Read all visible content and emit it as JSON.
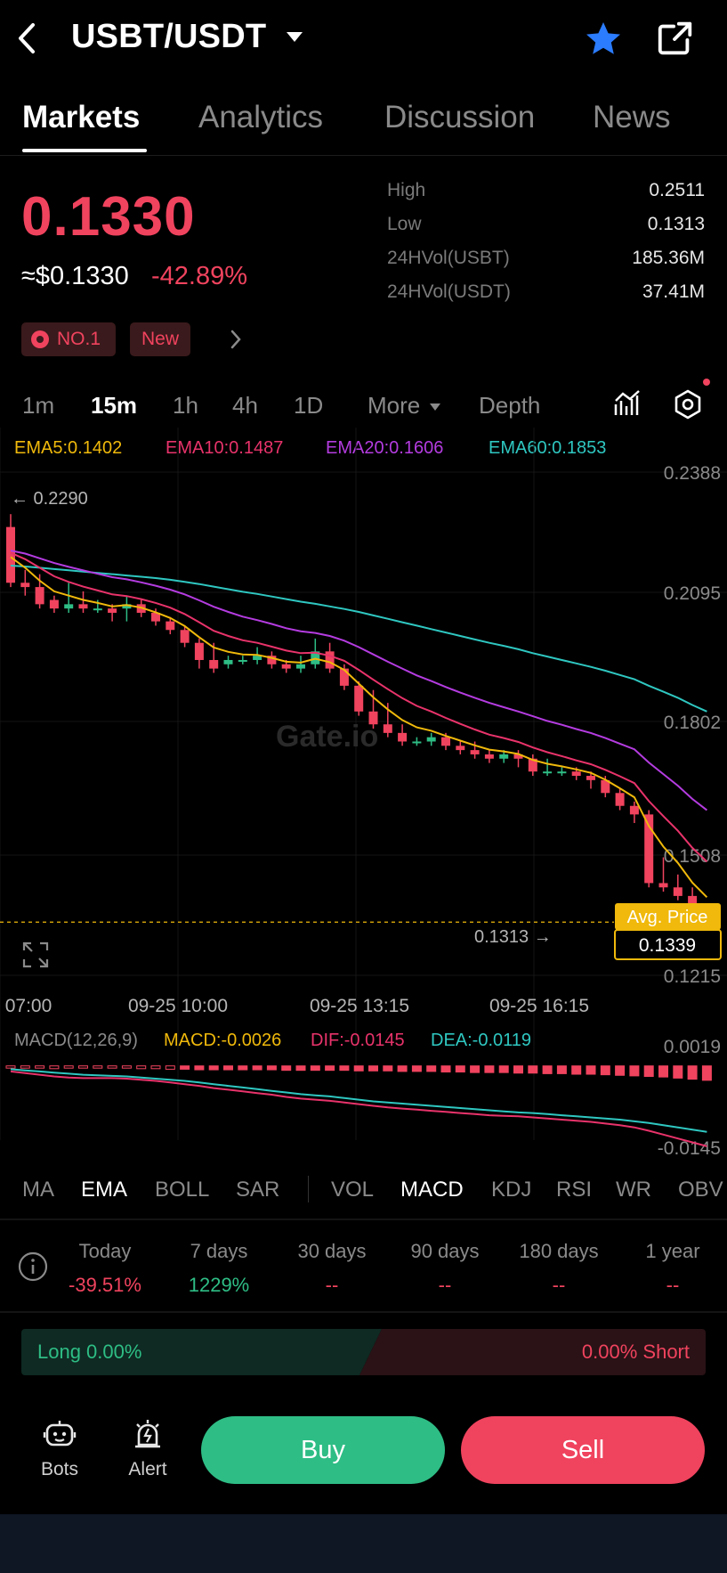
{
  "header": {
    "title": "USBT/USDT"
  },
  "tabs": [
    "Markets",
    "Analytics",
    "Discussion",
    "News"
  ],
  "price": {
    "last": "0.1330",
    "usd": "≈$0.1330",
    "change": "-42.89%"
  },
  "badges": {
    "rank": "NO.1",
    "new": "New"
  },
  "stats": [
    {
      "label": "High",
      "value": "0.2511"
    },
    {
      "label": "Low",
      "value": "0.1313"
    },
    {
      "label": "24HVol(USBT)",
      "value": "185.36M"
    },
    {
      "label": "24HVol(USDT)",
      "value": "37.41M"
    }
  ],
  "intervals": [
    "1m",
    "15m",
    "1h",
    "4h",
    "1D",
    "More",
    "Depth"
  ],
  "ema_legend": {
    "ema5": "EMA5:0.1402",
    "ema10": "EMA10:0.1487",
    "ema20": "EMA20:0.1606",
    "ema60": "EMA60:0.1853"
  },
  "colors": {
    "up": "#2ebd85",
    "down": "#f0435e",
    "ema5": "#f0b90b",
    "ema10": "#e8336b",
    "ema20": "#b43ce0",
    "ema60": "#2fc7c1"
  },
  "chart_data": {
    "type": "candlestick",
    "y_ticks": [
      "0.2388",
      "0.2095",
      "0.1802",
      "0.1508",
      "0.1215"
    ],
    "ylim": [
      0.1215,
      0.2388
    ],
    "x_ticks": [
      "07:00",
      "09-25 10:00",
      "09-25 13:15",
      "09-25 16:15"
    ],
    "high_marker": "← 0.2290",
    "low_marker": "0.1313 →",
    "avg_price_label": "Avg. Price",
    "avg_price": "0.1339",
    "avg_price_value": 0.1339,
    "candles": [
      [
        0.226,
        0.213,
        0.229,
        0.212
      ],
      [
        0.213,
        0.212,
        0.216,
        0.21
      ],
      [
        0.212,
        0.208,
        0.215,
        0.207
      ],
      [
        0.209,
        0.207,
        0.21,
        0.206
      ],
      [
        0.207,
        0.208,
        0.213,
        0.206
      ],
      [
        0.208,
        0.207,
        0.211,
        0.206
      ],
      [
        0.207,
        0.207,
        0.209,
        0.206
      ],
      [
        0.207,
        0.206,
        0.208,
        0.204
      ],
      [
        0.207,
        0.208,
        0.21,
        0.204
      ],
      [
        0.208,
        0.206,
        0.209,
        0.205
      ],
      [
        0.206,
        0.204,
        0.207,
        0.203
      ],
      [
        0.204,
        0.202,
        0.205,
        0.201
      ],
      [
        0.202,
        0.199,
        0.203,
        0.198
      ],
      [
        0.199,
        0.195,
        0.2,
        0.193
      ],
      [
        0.195,
        0.193,
        0.199,
        0.192
      ],
      [
        0.194,
        0.195,
        0.196,
        0.193
      ],
      [
        0.195,
        0.195,
        0.196,
        0.194
      ],
      [
        0.195,
        0.196,
        0.198,
        0.194
      ],
      [
        0.196,
        0.194,
        0.197,
        0.193
      ],
      [
        0.194,
        0.193,
        0.195,
        0.192
      ],
      [
        0.193,
        0.194,
        0.196,
        0.192
      ],
      [
        0.194,
        0.197,
        0.2,
        0.193
      ],
      [
        0.197,
        0.193,
        0.199,
        0.192
      ],
      [
        0.193,
        0.189,
        0.194,
        0.188
      ],
      [
        0.189,
        0.183,
        0.19,
        0.182
      ],
      [
        0.183,
        0.18,
        0.188,
        0.179
      ],
      [
        0.18,
        0.178,
        0.185,
        0.177
      ],
      [
        0.178,
        0.176,
        0.18,
        0.175
      ],
      [
        0.176,
        0.176,
        0.177,
        0.175
      ],
      [
        0.176,
        0.177,
        0.178,
        0.175
      ],
      [
        0.177,
        0.175,
        0.178,
        0.174
      ],
      [
        0.175,
        0.174,
        0.176,
        0.173
      ],
      [
        0.174,
        0.173,
        0.176,
        0.172
      ],
      [
        0.173,
        0.172,
        0.174,
        0.171
      ],
      [
        0.172,
        0.173,
        0.174,
        0.171
      ],
      [
        0.173,
        0.172,
        0.174,
        0.17
      ],
      [
        0.172,
        0.169,
        0.173,
        0.168
      ],
      [
        0.169,
        0.169,
        0.172,
        0.168
      ],
      [
        0.169,
        0.169,
        0.17,
        0.168
      ],
      [
        0.169,
        0.168,
        0.17,
        0.167
      ],
      [
        0.168,
        0.167,
        0.169,
        0.165
      ],
      [
        0.167,
        0.164,
        0.168,
        0.163
      ],
      [
        0.164,
        0.161,
        0.165,
        0.16
      ],
      [
        0.161,
        0.159,
        0.162,
        0.157
      ],
      [
        0.159,
        0.143,
        0.16,
        0.142
      ],
      [
        0.143,
        0.142,
        0.149,
        0.141
      ],
      [
        0.142,
        0.14,
        0.145,
        0.139
      ],
      [
        0.14,
        0.134,
        0.142,
        0.132
      ],
      [
        0.134,
        0.133,
        0.136,
        0.1313
      ]
    ],
    "ema5": [
      0.219,
      0.2165,
      0.2135,
      0.211,
      0.21,
      0.209,
      0.2083,
      0.2075,
      0.2078,
      0.2072,
      0.2061,
      0.2048,
      0.2029,
      0.2003,
      0.1979,
      0.1969,
      0.1963,
      0.1962,
      0.1955,
      0.1946,
      0.1944,
      0.1953,
      0.1945,
      0.1927,
      0.1895,
      0.1863,
      0.1835,
      0.181,
      0.1793,
      0.1785,
      0.1773,
      0.1762,
      0.1751,
      0.1741,
      0.1737,
      0.1731,
      0.1717,
      0.1708,
      0.1702,
      0.1695,
      0.1687,
      0.1671,
      0.1651,
      0.163,
      0.1563,
      0.1515,
      0.1477,
      0.1431,
      0.1397
    ],
    "ema10": [
      0.22,
      0.2185,
      0.2165,
      0.2145,
      0.2132,
      0.2121,
      0.2112,
      0.2103,
      0.2099,
      0.2092,
      0.2083,
      0.2072,
      0.2057,
      0.2038,
      0.2018,
      0.2006,
      0.1996,
      0.199,
      0.1981,
      0.1972,
      0.1966,
      0.1967,
      0.196,
      0.1948,
      0.1927,
      0.1904,
      0.1882,
      0.1861,
      0.1843,
      0.183,
      0.1815,
      0.1801,
      0.1788,
      0.1776,
      0.1768,
      0.1759,
      0.1746,
      0.1735,
      0.1726,
      0.1716,
      0.1707,
      0.1694,
      0.1679,
      0.1663,
      0.1621,
      0.1586,
      0.1552,
      0.1512,
      0.148
    ],
    "ema20": [
      0.2205,
      0.2198,
      0.2187,
      0.2176,
      0.2167,
      0.2159,
      0.2151,
      0.2143,
      0.2138,
      0.2131,
      0.2123,
      0.2114,
      0.2103,
      0.2089,
      0.2074,
      0.2062,
      0.2051,
      0.2043,
      0.2034,
      0.2024,
      0.2017,
      0.2013,
      0.2006,
      0.1995,
      0.198,
      0.1963,
      0.1946,
      0.193,
      0.1914,
      0.1901,
      0.1887,
      0.1874,
      0.1862,
      0.185,
      0.184,
      0.183,
      0.1819,
      0.1808,
      0.1799,
      0.1789,
      0.178,
      0.1768,
      0.1755,
      0.1742,
      0.1711,
      0.1684,
      0.1657,
      0.1626,
      0.16
    ],
    "ema60": [
      0.217,
      0.2168,
      0.2165,
      0.2162,
      0.2159,
      0.2156,
      0.2153,
      0.215,
      0.2147,
      0.2144,
      0.2141,
      0.2137,
      0.2132,
      0.2127,
      0.2121,
      0.2115,
      0.2109,
      0.2104,
      0.2098,
      0.2092,
      0.2086,
      0.2081,
      0.2075,
      0.2069,
      0.2062,
      0.2054,
      0.2046,
      0.2038,
      0.203,
      0.2022,
      0.2014,
      0.2006,
      0.1998,
      0.199,
      0.1983,
      0.1975,
      0.1966,
      0.1958,
      0.195,
      0.1942,
      0.1934,
      0.1925,
      0.1915,
      0.1905,
      0.189,
      0.1876,
      0.1862,
      0.1845,
      0.183
    ],
    "macd_legend": {
      "name": "MACD(12,26,9)",
      "macd": "MACD:-0.0026",
      "dif": "DIF:-0.0145",
      "dea": "DEA:-0.0119"
    },
    "macd_ticks": [
      "0.0019",
      "-0.0145"
    ],
    "macd_ylim": [
      -0.015,
      0.0022
    ],
    "macd_hist": [
      -0.0004,
      -0.0004,
      -0.0004,
      -0.0005,
      -0.0004,
      -0.0004,
      -0.0004,
      -0.0004,
      -0.0004,
      -0.0005,
      -0.0005,
      -0.0006,
      -0.0006,
      -0.0007,
      -0.0007,
      -0.0007,
      -0.0007,
      -0.0007,
      -0.0007,
      -0.0008,
      -0.0008,
      -0.0008,
      -0.0008,
      -0.0008,
      -0.0009,
      -0.0009,
      -0.0009,
      -0.001,
      -0.001,
      -0.001,
      -0.0011,
      -0.0011,
      -0.0012,
      -0.0012,
      -0.0012,
      -0.0013,
      -0.0013,
      -0.0014,
      -0.0014,
      -0.0015,
      -0.0015,
      -0.0016,
      -0.0017,
      -0.0018,
      -0.0019,
      -0.002,
      -0.0022,
      -0.0024,
      -0.0026
    ],
    "dif": [
      -0.001,
      -0.0013,
      -0.0016,
      -0.0019,
      -0.0021,
      -0.0022,
      -0.0022,
      -0.0022,
      -0.0023,
      -0.0025,
      -0.0027,
      -0.003,
      -0.0033,
      -0.0036,
      -0.004,
      -0.0043,
      -0.0046,
      -0.0049,
      -0.0052,
      -0.0056,
      -0.0059,
      -0.0061,
      -0.0063,
      -0.0066,
      -0.0069,
      -0.0072,
      -0.0075,
      -0.0077,
      -0.0079,
      -0.0081,
      -0.0083,
      -0.0085,
      -0.0087,
      -0.0089,
      -0.009,
      -0.0091,
      -0.0093,
      -0.0095,
      -0.0097,
      -0.0099,
      -0.0101,
      -0.0104,
      -0.0107,
      -0.0111,
      -0.0117,
      -0.0124,
      -0.0131,
      -0.0138,
      -0.0145
    ],
    "dea": [
      -0.0006,
      -0.0008,
      -0.001,
      -0.0012,
      -0.0014,
      -0.0016,
      -0.0017,
      -0.0018,
      -0.0019,
      -0.0021,
      -0.0023,
      -0.0025,
      -0.0027,
      -0.003,
      -0.0033,
      -0.0036,
      -0.0039,
      -0.0042,
      -0.0045,
      -0.0048,
      -0.0051,
      -0.0053,
      -0.0055,
      -0.0058,
      -0.0061,
      -0.0064,
      -0.0066,
      -0.0068,
      -0.007,
      -0.0072,
      -0.0074,
      -0.0076,
      -0.0078,
      -0.008,
      -0.0082,
      -0.0084,
      -0.0085,
      -0.0087,
      -0.0089,
      -0.0091,
      -0.0093,
      -0.0095,
      -0.0097,
      -0.01,
      -0.0103,
      -0.0107,
      -0.0111,
      -0.0115,
      -0.0119
    ]
  },
  "indicators": [
    "MA",
    "EMA",
    "BOLL",
    "SAR",
    "VOL",
    "MACD",
    "KDJ",
    "RSI",
    "WR",
    "OBV"
  ],
  "performance": [
    {
      "label": "Today",
      "value": "-39.51%"
    },
    {
      "label": "7 days",
      "value": "1229%"
    },
    {
      "label": "30 days",
      "value": "--"
    },
    {
      "label": "90 days",
      "value": "--"
    },
    {
      "label": "180 days",
      "value": "--"
    },
    {
      "label": "1 year",
      "value": "--"
    }
  ],
  "long_short": {
    "long": "Long 0.00%",
    "short": "0.00% Short"
  },
  "bottom": {
    "bots": "Bots",
    "alert": "Alert",
    "buy": "Buy",
    "sell": "Sell"
  }
}
